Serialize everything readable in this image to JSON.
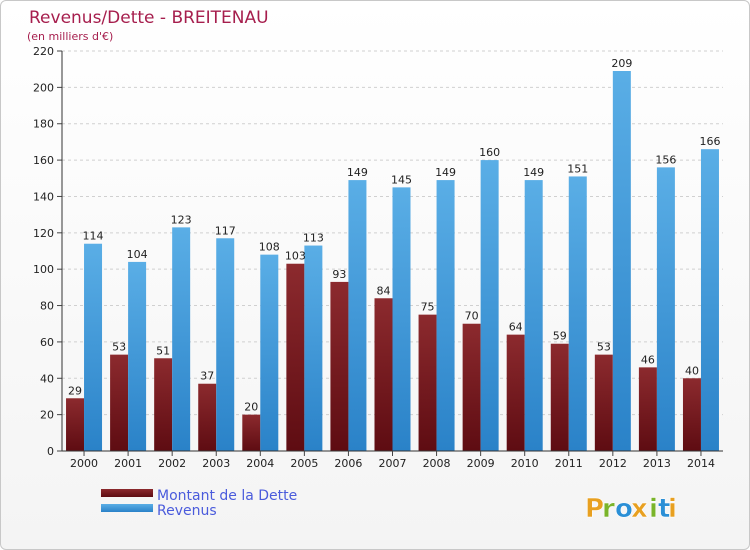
{
  "chart_data": {
    "type": "bar",
    "title": "Revenus/Dette - BREITENAU",
    "subtitle": "(en milliers d'€)",
    "categories": [
      "2000",
      "2001",
      "2002",
      "2003",
      "2004",
      "2005",
      "2006",
      "2007",
      "2008",
      "2009",
      "2010",
      "2011",
      "2012",
      "2013",
      "2014"
    ],
    "series": [
      {
        "name": "Montant de la Dette",
        "color": "#7a1a1f",
        "values": [
          29,
          53,
          51,
          37,
          20,
          103,
          93,
          84,
          75,
          70,
          64,
          59,
          53,
          46,
          40
        ]
      },
      {
        "name": "Revenus",
        "color": "#4da3e0",
        "values": [
          114,
          104,
          123,
          117,
          108,
          113,
          149,
          145,
          149,
          160,
          149,
          151,
          209,
          156,
          166
        ]
      }
    ],
    "ylim": [
      0,
      220
    ],
    "yticks": [
      0,
      20,
      40,
      60,
      80,
      100,
      120,
      140,
      160,
      180,
      200,
      220
    ],
    "grid": true,
    "legend": "bottom-left"
  },
  "brand": {
    "letters": [
      "P",
      "r",
      "o",
      "x",
      "i",
      "t",
      "i"
    ],
    "colors": [
      "#e8a020",
      "#7ab42a",
      "#2a8fd6",
      "#e8a020",
      "#7ab42a",
      "#2a8fd6",
      "#e8a020"
    ]
  }
}
